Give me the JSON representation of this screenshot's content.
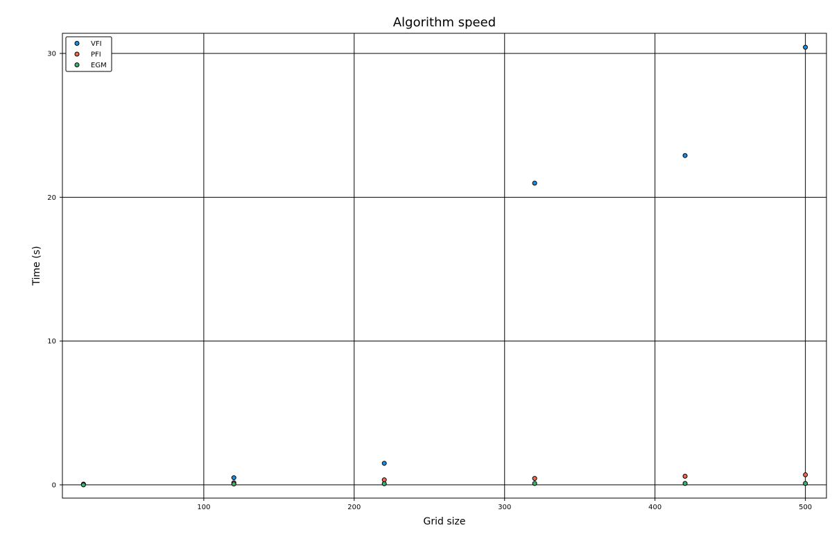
{
  "chart_data": {
    "type": "scatter",
    "title": "Algorithm speed",
    "xlabel": "Grid size",
    "ylabel": "Time (s)",
    "xlim": [
      6,
      514
    ],
    "ylim": [
      -0.92,
      31.4
    ],
    "xticks": [
      100,
      200,
      300,
      400,
      500
    ],
    "yticks": [
      0,
      10,
      20,
      30
    ],
    "grid": true,
    "legend_position": "top-left",
    "series": [
      {
        "name": "VFI",
        "color": "#1f8ddf",
        "x": [
          20,
          120,
          220,
          320,
          420,
          500
        ],
        "y": [
          0.05,
          0.5,
          1.5,
          20.98,
          22.9,
          30.43
        ]
      },
      {
        "name": "PFI",
        "color": "#ee6a50",
        "x": [
          20,
          120,
          220,
          320,
          420,
          500
        ],
        "y": [
          0.02,
          0.15,
          0.35,
          0.45,
          0.6,
          0.7
        ]
      },
      {
        "name": "EGM",
        "color": "#3cb371",
        "x": [
          20,
          120,
          220,
          320,
          420,
          500
        ],
        "y": [
          0.0,
          0.06,
          0.08,
          0.1,
          0.1,
          0.1
        ]
      }
    ]
  }
}
